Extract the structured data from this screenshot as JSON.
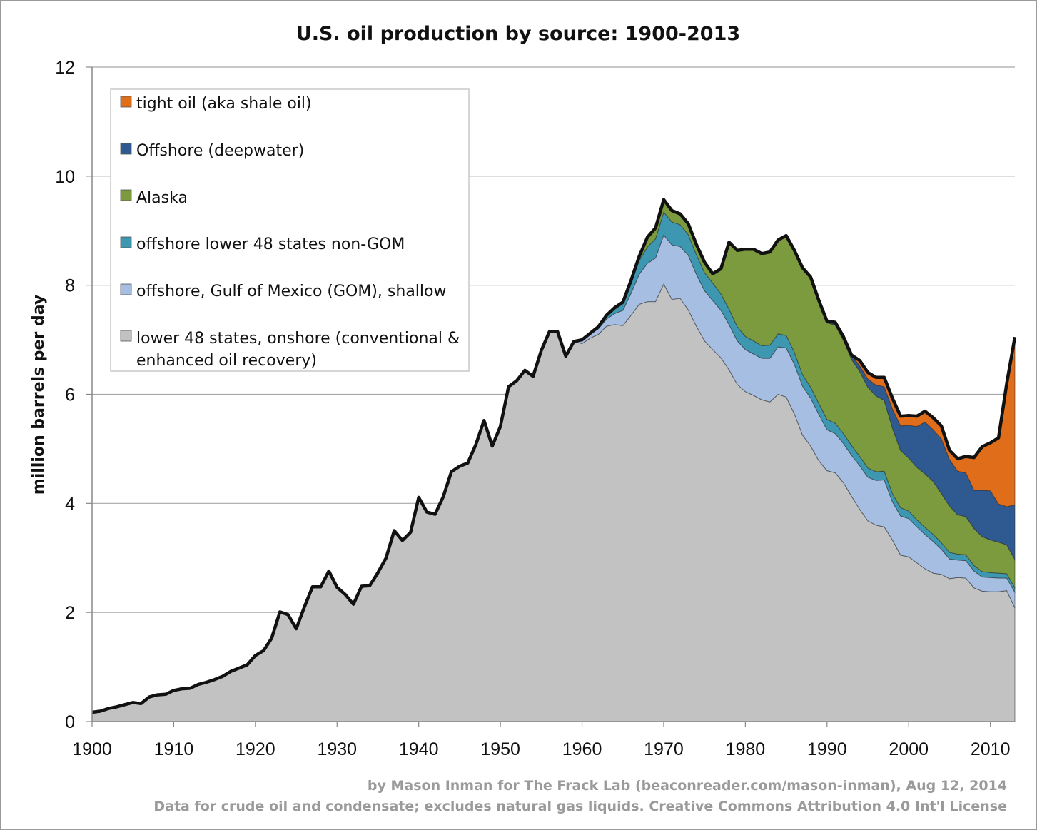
{
  "chart_data": {
    "type": "area",
    "stacked": true,
    "title": "U.S. oil production by source: 1900-2013",
    "xlabel": "",
    "ylabel": "million barrels per day",
    "xlim": [
      1900,
      2013
    ],
    "ylim": [
      0,
      12
    ],
    "x_ticks": [
      "1900",
      "1910",
      "1920",
      "1930",
      "1940",
      "1950",
      "1960",
      "1970",
      "1980",
      "1990",
      "2000",
      "2010"
    ],
    "y_ticks": [
      "0",
      "2",
      "4",
      "6",
      "8",
      "10",
      "12"
    ],
    "grid": true,
    "legend_position": "top-left",
    "x": [
      1900,
      1901,
      1902,
      1903,
      1904,
      1905,
      1906,
      1907,
      1908,
      1909,
      1910,
      1911,
      1912,
      1913,
      1914,
      1915,
      1916,
      1917,
      1918,
      1919,
      1920,
      1921,
      1922,
      1923,
      1924,
      1925,
      1926,
      1927,
      1928,
      1929,
      1930,
      1931,
      1932,
      1933,
      1934,
      1935,
      1936,
      1937,
      1938,
      1939,
      1940,
      1941,
      1942,
      1943,
      1944,
      1945,
      1946,
      1947,
      1948,
      1949,
      1950,
      1951,
      1952,
      1953,
      1954,
      1955,
      1956,
      1957,
      1958,
      1959,
      1960,
      1961,
      1962,
      1963,
      1964,
      1965,
      1966,
      1967,
      1968,
      1969,
      1970,
      1971,
      1972,
      1973,
      1974,
      1975,
      1976,
      1977,
      1978,
      1979,
      1980,
      1981,
      1982,
      1983,
      1984,
      1985,
      1986,
      1987,
      1988,
      1989,
      1990,
      1991,
      1992,
      1993,
      1994,
      1995,
      1996,
      1997,
      1998,
      1999,
      2000,
      2001,
      2002,
      2003,
      2004,
      2005,
      2006,
      2007,
      2008,
      2009,
      2010,
      2011,
      2012,
      2013
    ],
    "series": [
      {
        "name": "lower 48 states, onshore (conventional & enhanced oil recovery)",
        "color": "#c2c2c2",
        "values": [
          0.17,
          0.19,
          0.24,
          0.27,
          0.31,
          0.35,
          0.33,
          0.45,
          0.49,
          0.5,
          0.57,
          0.6,
          0.61,
          0.68,
          0.72,
          0.77,
          0.83,
          0.92,
          0.98,
          1.04,
          1.21,
          1.3,
          1.53,
          2.01,
          1.96,
          1.7,
          2.1,
          2.47,
          2.47,
          2.76,
          2.46,
          2.33,
          2.15,
          2.48,
          2.49,
          2.73,
          3.0,
          3.5,
          3.32,
          3.47,
          4.11,
          3.84,
          3.8,
          4.12,
          4.58,
          4.68,
          4.74,
          5.08,
          5.52,
          5.05,
          5.41,
          6.14,
          6.25,
          6.44,
          6.33,
          6.8,
          7.15,
          7.15,
          6.7,
          6.97,
          6.93,
          7.03,
          7.1,
          7.25,
          7.28,
          7.26,
          7.45,
          7.65,
          7.7,
          7.7,
          8.02,
          7.74,
          7.76,
          7.55,
          7.25,
          6.98,
          6.82,
          6.67,
          6.45,
          6.18,
          6.05,
          5.98,
          5.9,
          5.86,
          6.0,
          5.95,
          5.64,
          5.25,
          5.05,
          4.78,
          4.6,
          4.56,
          4.38,
          4.13,
          3.89,
          3.68,
          3.6,
          3.57,
          3.33,
          3.05,
          3.02,
          2.91,
          2.8,
          2.72,
          2.7,
          2.62,
          2.64,
          2.63,
          2.45,
          2.39,
          2.38,
          2.38,
          2.4,
          2.08
        ]
      },
      {
        "name": "offshore, Gulf of Mexico (GOM), shallow",
        "color": "#a7bee3",
        "values": [
          0,
          0,
          0,
          0,
          0,
          0,
          0,
          0,
          0,
          0,
          0,
          0,
          0,
          0,
          0,
          0,
          0,
          0,
          0,
          0,
          0,
          0,
          0,
          0,
          0,
          0,
          0,
          0,
          0,
          0,
          0,
          0,
          0,
          0,
          0,
          0,
          0,
          0,
          0,
          0,
          0,
          0,
          0,
          0,
          0,
          0,
          0,
          0,
          0,
          0,
          0,
          0,
          0,
          0,
          0,
          0,
          0,
          0,
          0,
          0,
          0.05,
          0.07,
          0.1,
          0.13,
          0.2,
          0.28,
          0.4,
          0.55,
          0.7,
          0.8,
          0.9,
          1.0,
          0.95,
          1.0,
          0.95,
          0.92,
          0.9,
          0.87,
          0.83,
          0.8,
          0.77,
          0.76,
          0.76,
          0.8,
          0.87,
          0.9,
          0.91,
          0.9,
          0.88,
          0.85,
          0.75,
          0.72,
          0.72,
          0.75,
          0.8,
          0.8,
          0.82,
          0.86,
          0.7,
          0.72,
          0.7,
          0.66,
          0.63,
          0.58,
          0.46,
          0.36,
          0.32,
          0.32,
          0.31,
          0.26,
          0.26,
          0.25,
          0.23,
          0.29
        ]
      },
      {
        "name": "offshore lower 48 states non-GOM",
        "color": "#3e97b0",
        "values": [
          0,
          0,
          0,
          0,
          0,
          0,
          0,
          0,
          0,
          0,
          0,
          0,
          0,
          0,
          0,
          0,
          0,
          0,
          0,
          0,
          0,
          0,
          0,
          0,
          0,
          0,
          0,
          0,
          0,
          0,
          0,
          0,
          0,
          0,
          0,
          0,
          0,
          0,
          0,
          0,
          0,
          0,
          0,
          0,
          0,
          0,
          0,
          0,
          0,
          0,
          0,
          0,
          0,
          0,
          0,
          0,
          0,
          0,
          0,
          0,
          0.02,
          0.02,
          0.03,
          0.05,
          0.08,
          0.12,
          0.2,
          0.25,
          0.3,
          0.35,
          0.42,
          0.42,
          0.4,
          0.38,
          0.36,
          0.33,
          0.32,
          0.3,
          0.28,
          0.26,
          0.24,
          0.24,
          0.23,
          0.24,
          0.24,
          0.23,
          0.22,
          0.21,
          0.2,
          0.2,
          0.19,
          0.19,
          0.18,
          0.18,
          0.17,
          0.17,
          0.16,
          0.16,
          0.15,
          0.15,
          0.14,
          0.13,
          0.13,
          0.13,
          0.12,
          0.12,
          0.11,
          0.11,
          0.1,
          0.1,
          0.09,
          0.09,
          0.08,
          0.08
        ]
      },
      {
        "name": "Alaska",
        "color": "#7b9b3e",
        "values": [
          0,
          0,
          0,
          0,
          0,
          0,
          0,
          0,
          0,
          0,
          0,
          0,
          0,
          0,
          0,
          0,
          0,
          0,
          0,
          0,
          0,
          0,
          0,
          0,
          0,
          0,
          0,
          0,
          0,
          0,
          0,
          0,
          0,
          0,
          0,
          0,
          0,
          0,
          0,
          0,
          0,
          0,
          0,
          0,
          0,
          0,
          0,
          0,
          0,
          0,
          0,
          0,
          0,
          0,
          0,
          0,
          0,
          0,
          0,
          0,
          0,
          0,
          0.01,
          0.02,
          0.03,
          0.03,
          0.04,
          0.08,
          0.18,
          0.2,
          0.23,
          0.21,
          0.2,
          0.2,
          0.19,
          0.19,
          0.17,
          0.46,
          1.23,
          1.4,
          1.6,
          1.68,
          1.69,
          1.71,
          1.72,
          1.83,
          1.87,
          1.96,
          2.02,
          1.87,
          1.77,
          1.8,
          1.71,
          1.58,
          1.56,
          1.48,
          1.39,
          1.3,
          1.2,
          1.05,
          0.97,
          0.96,
          0.98,
          0.97,
          0.9,
          0.85,
          0.72,
          0.7,
          0.68,
          0.64,
          0.6,
          0.57,
          0.53,
          0.52
        ]
      },
      {
        "name": "Offshore (deepwater)",
        "color": "#2e5a91",
        "values": [
          0,
          0,
          0,
          0,
          0,
          0,
          0,
          0,
          0,
          0,
          0,
          0,
          0,
          0,
          0,
          0,
          0,
          0,
          0,
          0,
          0,
          0,
          0,
          0,
          0,
          0,
          0,
          0,
          0,
          0,
          0,
          0,
          0,
          0,
          0,
          0,
          0,
          0,
          0,
          0,
          0,
          0,
          0,
          0,
          0,
          0,
          0,
          0,
          0,
          0,
          0,
          0,
          0,
          0,
          0,
          0,
          0,
          0,
          0,
          0,
          0,
          0,
          0,
          0,
          0,
          0,
          0,
          0,
          0,
          0,
          0,
          0,
          0,
          0,
          0,
          0,
          0,
          0,
          0,
          0,
          0,
          0,
          0,
          0,
          0,
          0,
          0,
          0,
          0,
          0.02,
          0.03,
          0.05,
          0.07,
          0.08,
          0.1,
          0.15,
          0.2,
          0.25,
          0.35,
          0.45,
          0.6,
          0.75,
          0.95,
          0.95,
          1.0,
          0.85,
          0.8,
          0.8,
          0.7,
          0.85,
          0.9,
          0.7,
          0.7,
          1.0
        ]
      },
      {
        "name": "tight oil (aka shale oil)",
        "color": "#e06d1a",
        "values": [
          0,
          0,
          0,
          0,
          0,
          0,
          0,
          0,
          0,
          0,
          0,
          0,
          0,
          0,
          0,
          0,
          0,
          0,
          0,
          0,
          0,
          0,
          0,
          0,
          0,
          0,
          0,
          0,
          0,
          0,
          0,
          0,
          0,
          0,
          0,
          0,
          0,
          0,
          0,
          0,
          0,
          0,
          0,
          0,
          0,
          0,
          0,
          0,
          0,
          0,
          0,
          0,
          0,
          0,
          0,
          0,
          0,
          0,
          0,
          0,
          0,
          0,
          0,
          0,
          0,
          0,
          0,
          0,
          0,
          0,
          0,
          0,
          0,
          0,
          0,
          0,
          0,
          0,
          0,
          0,
          0,
          0,
          0,
          0,
          0,
          0,
          0,
          0,
          0,
          0,
          0,
          0,
          0,
          0,
          0.1,
          0.12,
          0.14,
          0.17,
          0.2,
          0.18,
          0.18,
          0.19,
          0.2,
          0.22,
          0.24,
          0.17,
          0.23,
          0.3,
          0.6,
          0.8,
          0.88,
          1.21,
          2.26,
          3.08
        ]
      }
    ],
    "total_line": {
      "name": "total",
      "color": "#111111"
    },
    "credits": [
      "by Mason Inman for The Frack Lab (beaconreader.com/mason-inman), Aug 12, 2014",
      "Data for crude oil and condensate; excludes natural gas liquids. Creative Commons Attribution 4.0 Int'l License"
    ]
  }
}
